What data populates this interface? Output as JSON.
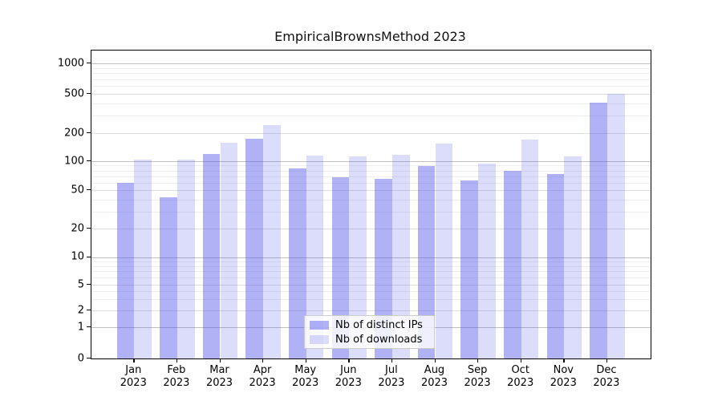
{
  "chart_data": {
    "type": "bar",
    "title": "EmpiricalBrownsMethod 2023",
    "categories": [
      "Jan",
      "Feb",
      "Mar",
      "Apr",
      "May",
      "Jun",
      "Jul",
      "Aug",
      "Sep",
      "Oct",
      "Nov",
      "Dec"
    ],
    "category_year": "2023",
    "series": [
      {
        "name": "Nb of distinct IPs",
        "color": "rgba(82,82,235,0.45)",
        "values": [
          60,
          42,
          119,
          175,
          84,
          68,
          65,
          89,
          63,
          79,
          74,
          410
        ]
      },
      {
        "name": "Nb of downloads",
        "color": "rgba(82,82,235,0.20)",
        "values": [
          104,
          104,
          157,
          240,
          114,
          112,
          117,
          155,
          94,
          172,
          112,
          500
        ]
      }
    ],
    "xlabel": "",
    "ylabel": "",
    "yscale": "symlog-like (linear 0-1, logarithmic above 1)",
    "yticks": [
      0,
      1,
      2,
      5,
      10,
      20,
      50,
      100,
      200,
      500,
      1000
    ],
    "ytick_major": [
      1,
      10,
      100,
      1000
    ],
    "minor_gridlines": [
      3,
      4,
      6,
      7,
      8,
      9,
      30,
      40,
      60,
      70,
      80,
      90,
      300,
      400,
      600,
      700,
      800,
      900
    ],
    "ylim": [
      0,
      1350
    ],
    "grid": "horizontal major and minor, light gray",
    "legend_position": "lower center inside axes",
    "frame": "full box",
    "colors": {
      "bar_ips_composited": "#ababf1",
      "bar_downloads_composited": "#dcdcf6",
      "grid_major": "#c0c0c0",
      "grid_minor": "#eeeeee",
      "spine": "#000000"
    }
  }
}
